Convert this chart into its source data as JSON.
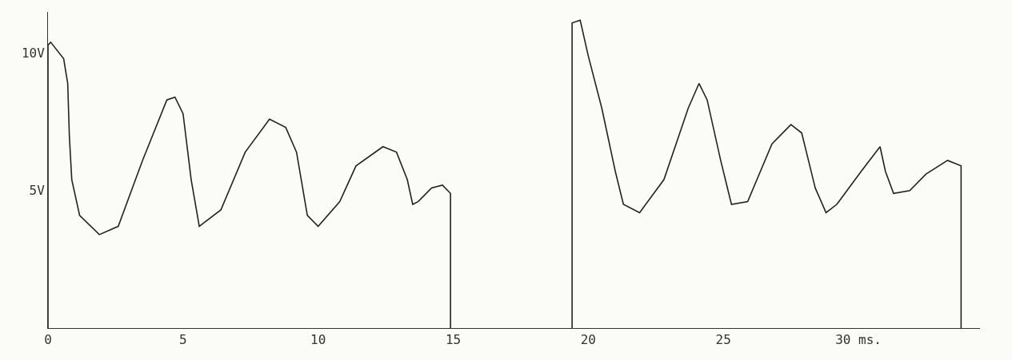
{
  "chart_data": {
    "type": "line",
    "series": [
      {
        "color": "#222222",
        "x": [
          0,
          0,
          0.1,
          0.58,
          0.73,
          0.79,
          0.88,
          1.17,
          1.9,
          2.6,
          3.5,
          4.4,
          4.7,
          5.0,
          5.3,
          5.6,
          6.4,
          7.3,
          8.2,
          8.8,
          9.2,
          9.6,
          10.0,
          10.8,
          11.4,
          12.4,
          12.9,
          13.3,
          13.5,
          13.7,
          14.2,
          14.6,
          14.9,
          14.9
        ],
        "values": [
          0,
          10.3,
          10.4,
          9.8,
          8.9,
          7.0,
          5.4,
          4.1,
          3.4,
          3.7,
          6.1,
          8.3,
          8.4,
          7.8,
          5.4,
          3.7,
          4.3,
          6.4,
          7.6,
          7.3,
          6.4,
          4.1,
          3.7,
          4.6,
          5.9,
          6.6,
          6.4,
          5.4,
          4.5,
          4.6,
          5.1,
          5.2,
          4.9,
          0
        ]
      },
      {
        "color": "#222222",
        "x": [
          19.4,
          19.4,
          19.7,
          20.0,
          20.5,
          21.0,
          21.3,
          21.9,
          22.8,
          23.7,
          24.1,
          24.4,
          24.9,
          25.3,
          25.9,
          26.8,
          27.5,
          27.9,
          28.4,
          28.8,
          29.2,
          30.1,
          30.8,
          31.0,
          31.3,
          31.9,
          32.5,
          33.3,
          33.8,
          33.8
        ],
        "values": [
          0,
          11.1,
          11.2,
          9.9,
          8.0,
          5.7,
          4.5,
          4.2,
          5.4,
          8.0,
          8.9,
          8.3,
          6.1,
          4.5,
          4.6,
          6.7,
          7.4,
          7.1,
          5.1,
          4.2,
          4.5,
          5.7,
          6.6,
          5.7,
          4.9,
          5.0,
          5.6,
          6.1,
          5.9,
          0
        ]
      }
    ],
    "xlim": [
      0,
      34.5
    ],
    "ylim": [
      0,
      11.5
    ],
    "xticks": [
      0,
      5,
      10,
      15,
      20,
      25,
      {
        "value": 30,
        "label": "30 ms."
      }
    ],
    "yticks": [
      {
        "value": 5,
        "label": "5V"
      },
      {
        "value": 10,
        "label": "10V"
      }
    ],
    "grid": false,
    "marker": "none",
    "line_style": "solid"
  }
}
